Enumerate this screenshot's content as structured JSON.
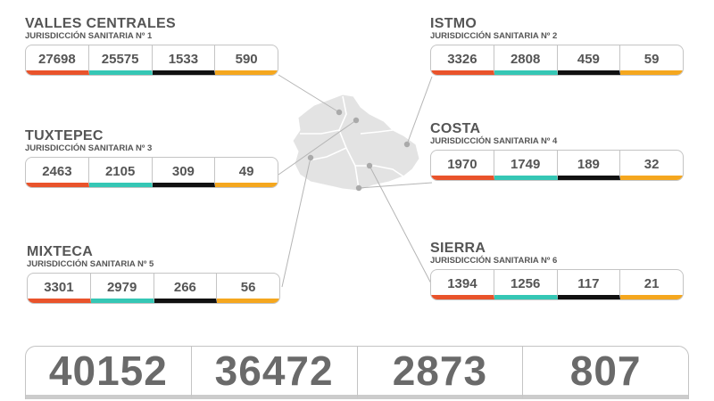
{
  "colors": {
    "cases": "#e9532b",
    "recovered": "#35c7b5",
    "deaths": "#111111",
    "active": "#f5a71e",
    "map": "#e3e3e3"
  },
  "regions": {
    "valles": {
      "name": "VALLES CENTRALES",
      "sub": "JURISDICCIÓN SANITARIA Nº 1",
      "v": [
        "27698",
        "25575",
        "1533",
        "590"
      ]
    },
    "istmo": {
      "name": "ISTMO",
      "sub": "JURISDICCIÓN SANITARIA Nº 2",
      "v": [
        "3326",
        "2808",
        "459",
        "59"
      ]
    },
    "tuxtepec": {
      "name": "TUXTEPEC",
      "sub": "JURISDICCIÓN SANITARIA Nº 3",
      "v": [
        "2463",
        "2105",
        "309",
        "49"
      ]
    },
    "costa": {
      "name": "COSTA",
      "sub": "JURISDICCIÓN SANITARIA Nº 4",
      "v": [
        "1970",
        "1749",
        "189",
        "32"
      ]
    },
    "mixteca": {
      "name": "MIXTECA",
      "sub": "JURISDICCIÓN SANITARIA Nº 5",
      "v": [
        "3301",
        "2979",
        "266",
        "56"
      ]
    },
    "sierra": {
      "name": "SIERRA",
      "sub": "JURISDICCIÓN SANITARIA Nº 6",
      "v": [
        "1394",
        "1256",
        "117",
        "21"
      ]
    }
  },
  "totals": [
    "40152",
    "36472",
    "2873",
    "807"
  ]
}
